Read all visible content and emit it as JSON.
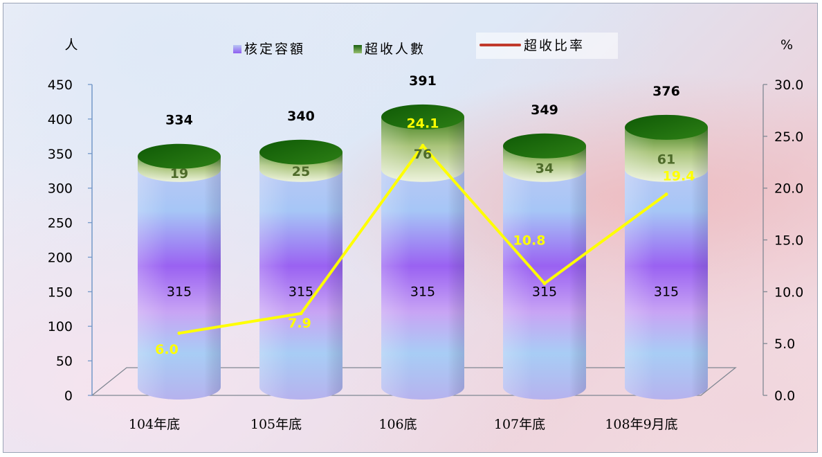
{
  "chart_data": {
    "type": "bar",
    "subtype": "stacked-cylinder-with-line",
    "categories": [
      "104年底",
      "105年底",
      "106底",
      "107年底",
      "108年9月底"
    ],
    "series": [
      {
        "name": "核定容額",
        "axis": "left",
        "values": [
          315,
          315,
          315,
          315,
          315
        ],
        "color": "#9b6cf0"
      },
      {
        "name": "超收人數",
        "axis": "left",
        "values": [
          19,
          25,
          76,
          34,
          61
        ],
        "color": "#1e6a12"
      },
      {
        "name": "超收比率",
        "axis": "right",
        "type": "line",
        "values": [
          6.0,
          7.9,
          24.1,
          10.8,
          19.4
        ],
        "color": "#ffff00",
        "legend_color": "#c0392b"
      }
    ],
    "totals": [
      334,
      340,
      391,
      349,
      376
    ],
    "base_labels": [
      "315",
      "315",
      "315",
      "315",
      "315"
    ],
    "extra_labels": [
      "19",
      "25",
      "76",
      "34",
      "61"
    ],
    "rate_labels": [
      "6.0",
      "7.9",
      "24.1",
      "10.8",
      "19.4"
    ],
    "total_labels": [
      "334",
      "340",
      "391",
      "349",
      "376"
    ],
    "ylabel_left": "人",
    "ylabel_right": "%",
    "ylim_left": [
      0,
      450
    ],
    "ylim_right": [
      0,
      30
    ],
    "yticks_left": [
      "0",
      "50",
      "100",
      "150",
      "200",
      "250",
      "300",
      "350",
      "400",
      "450"
    ],
    "yticks_right": [
      "0.0",
      "5.0",
      "10.0",
      "15.0",
      "20.0",
      "25.0",
      "30.0"
    ],
    "legend_placement": "top-center",
    "grid": false
  }
}
